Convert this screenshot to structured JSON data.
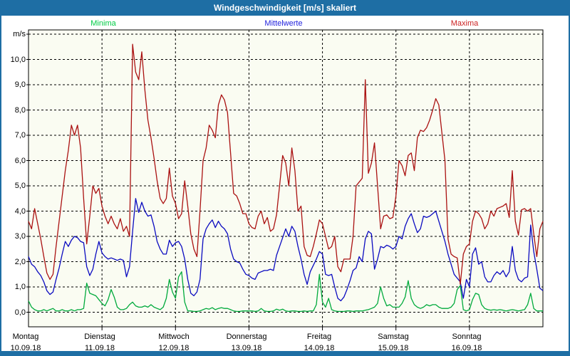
{
  "window": {
    "title_bar": "Windgeschwindigkeit [m/s] skaliert"
  },
  "colors": {
    "frame": "#1e6ea4",
    "plot_bg": "#fafcf2",
    "plot_border": "#000000",
    "grid": "#000000",
    "content_bg": "#ffffff",
    "title_text": "#ffffff",
    "axis_text": "#000000"
  },
  "chart_data": {
    "type": "line",
    "title": "Windgeschwindigkeit [m/s] skaliert",
    "ylabel_unit": "m/s",
    "ylim": [
      0,
      11.2
    ],
    "ytick_step": 1,
    "ytick_labels": [
      "0,0",
      "1,0",
      "2,0",
      "3,0",
      "4,0",
      "5,0",
      "6,0",
      "7,0",
      "8,0",
      "9,0",
      "10,0"
    ],
    "top_gridline_value": 11,
    "grid": "dashed",
    "legend_position": "top",
    "points_per_day": 24,
    "x_days": [
      {
        "weekday": "Montag",
        "date": "10.09.18"
      },
      {
        "weekday": "Dienstag",
        "date": "11.09.18"
      },
      {
        "weekday": "Mittwoch",
        "date": "12.09.18"
      },
      {
        "weekday": "Donnerstag",
        "date": "13.09.18"
      },
      {
        "weekday": "Freitag",
        "date": "14.09.18"
      },
      {
        "weekday": "Samstag",
        "date": "15.09.18"
      },
      {
        "weekday": "Sonntag",
        "date": "16.09.18"
      }
    ],
    "series": [
      {
        "name": "Minima",
        "label_color": "#00cc44",
        "line_color": "#00aa3c",
        "values": [
          0.45,
          0.2,
          0.1,
          0.05,
          0.05,
          0.1,
          0.05,
          0.1,
          0.15,
          0.05,
          0.05,
          0.1,
          0.05,
          0.05,
          0.1,
          0.05,
          0.1,
          0.1,
          0.15,
          1.15,
          0.75,
          0.7,
          0.65,
          0.5,
          0.35,
          0.25,
          0.5,
          0.9,
          0.6,
          0.2,
          0.1,
          0.1,
          0.15,
          0.3,
          0.4,
          0.25,
          0.2,
          0.2,
          0.25,
          0.2,
          0.3,
          0.2,
          0.15,
          0.1,
          0.2,
          0.55,
          1.3,
          0.8,
          0.55,
          1.4,
          1.6,
          0.4,
          0.05,
          0.05,
          0.03,
          0.03,
          0.05,
          0.1,
          0.15,
          0.12,
          0.18,
          0.1,
          0.15,
          0.18,
          0.15,
          0.15,
          0.1,
          0.05,
          0.03,
          0.03,
          0.05,
          0.05,
          0.05,
          0.05,
          0.03,
          0.05,
          0.15,
          0.05,
          0.03,
          0.03,
          0.05,
          0.12,
          0.08,
          0.12,
          0.05,
          0.03,
          0.05,
          0.05,
          0.03,
          0.03,
          0.05,
          0.03,
          0.05,
          0.05,
          0.3,
          1.5,
          0.4,
          0.2,
          0.55,
          0.1,
          0.05,
          0.03,
          0.03,
          0.03,
          0.05,
          0.05,
          0.03,
          0.05,
          0.05,
          0.05,
          0.08,
          0.1,
          0.15,
          0.2,
          0.35,
          1.0,
          0.55,
          0.25,
          0.3,
          0.2,
          0.2,
          0.2,
          0.35,
          0.6,
          1.25,
          0.55,
          0.3,
          0.2,
          0.15,
          0.2,
          0.3,
          0.25,
          0.3,
          0.3,
          0.2,
          0.15,
          0.15,
          0.15,
          0.2,
          0.35,
          0.9,
          1.05,
          0.1,
          0.05,
          0.1,
          0.5,
          0.75,
          0.7,
          0.3,
          0.15,
          0.1,
          0.08,
          0.1,
          0.08,
          0.1,
          0.08,
          0.05,
          0.08,
          0.1,
          0.08,
          0.05,
          0.08,
          0.1,
          0.3,
          0.75,
          0.15,
          0.05,
          0.05,
          0.05
        ]
      },
      {
        "name": "Mittelwerte",
        "label_color": "#2222dd",
        "line_color": "#0a0ac0",
        "values": [
          2.2,
          1.9,
          1.8,
          1.6,
          1.45,
          1.2,
          0.85,
          0.7,
          0.8,
          1.3,
          1.75,
          2.3,
          2.8,
          2.6,
          2.85,
          3.0,
          2.95,
          2.8,
          2.75,
          1.8,
          1.45,
          1.7,
          2.3,
          2.8,
          2.35,
          2.2,
          2.1,
          2.15,
          2.1,
          2.05,
          2.1,
          2.05,
          1.4,
          1.8,
          3.2,
          4.5,
          3.95,
          4.35,
          4.0,
          3.8,
          3.85,
          3.4,
          2.8,
          2.5,
          2.3,
          2.3,
          2.85,
          2.6,
          2.75,
          2.8,
          2.6,
          2.1,
          1.3,
          0.75,
          0.65,
          0.8,
          1.3,
          2.9,
          3.3,
          3.5,
          3.65,
          3.35,
          3.6,
          3.4,
          3.3,
          3.1,
          2.5,
          2.1,
          2.0,
          1.95,
          1.7,
          1.5,
          1.45,
          1.35,
          1.3,
          1.55,
          1.6,
          1.65,
          1.65,
          1.7,
          1.65,
          2.25,
          2.6,
          2.95,
          3.3,
          3.0,
          3.4,
          3.2,
          2.6,
          2.1,
          1.5,
          1.1,
          1.6,
          1.85,
          2.1,
          2.4,
          2.3,
          1.5,
          1.45,
          1.5,
          1.0,
          0.55,
          0.45,
          0.6,
          0.9,
          1.25,
          1.65,
          1.75,
          2.2,
          2.0,
          2.9,
          3.2,
          3.1,
          1.7,
          2.1,
          2.6,
          2.55,
          2.65,
          2.6,
          2.5,
          2.6,
          3.0,
          2.9,
          3.4,
          3.7,
          3.9,
          3.5,
          3.15,
          3.3,
          3.8,
          3.75,
          3.8,
          3.9,
          4.0,
          3.6,
          3.2,
          2.8,
          2.3,
          1.9,
          1.5,
          1.35,
          1.2,
          0.55,
          1.3,
          1.0,
          2.3,
          2.55,
          1.9,
          2.0,
          1.4,
          1.2,
          1.2,
          1.45,
          1.6,
          1.5,
          1.65,
          1.4,
          1.6,
          2.6,
          1.65,
          1.3,
          1.2,
          1.35,
          1.4,
          3.45,
          2.4,
          1.7,
          0.95,
          0.85
        ]
      },
      {
        "name": "Maxima",
        "label_color": "#cc2222",
        "line_color": "#aa1111",
        "values": [
          3.6,
          3.3,
          4.1,
          3.5,
          2.9,
          2.2,
          1.55,
          1.3,
          1.5,
          2.6,
          3.6,
          4.6,
          5.6,
          6.4,
          7.4,
          7.0,
          7.4,
          6.5,
          4.5,
          2.7,
          3.8,
          5.0,
          4.7,
          4.9,
          4.2,
          3.8,
          3.5,
          3.8,
          3.5,
          3.3,
          3.7,
          3.2,
          3.4,
          3.0,
          10.6,
          9.5,
          9.2,
          10.3,
          8.8,
          7.6,
          6.9,
          6.1,
          5.2,
          4.5,
          4.3,
          4.5,
          5.7,
          4.6,
          4.3,
          3.7,
          3.9,
          5.2,
          4.2,
          3.1,
          2.5,
          2.2,
          4.0,
          6.0,
          6.5,
          7.4,
          7.2,
          6.9,
          8.2,
          8.6,
          8.4,
          7.9,
          6.3,
          4.7,
          4.6,
          4.3,
          3.9,
          3.9,
          3.5,
          3.35,
          3.3,
          3.8,
          4.0,
          3.5,
          3.75,
          3.2,
          3.3,
          3.85,
          5.0,
          6.2,
          5.9,
          5.0,
          6.5,
          5.6,
          4.0,
          4.2,
          2.6,
          2.25,
          2.2,
          2.6,
          3.1,
          3.65,
          3.5,
          3.0,
          2.5,
          2.6,
          3.0,
          1.8,
          1.6,
          2.1,
          2.1,
          2.1,
          3.0,
          5.0,
          5.15,
          5.3,
          9.2,
          5.5,
          5.9,
          6.7,
          5.0,
          3.3,
          3.8,
          3.85,
          3.7,
          3.75,
          4.6,
          6.0,
          5.8,
          5.4,
          6.2,
          6.3,
          5.6,
          6.9,
          7.2,
          7.15,
          7.3,
          7.6,
          8.0,
          8.45,
          8.2,
          7.1,
          6.0,
          2.9,
          2.3,
          2.2,
          2.15,
          1.1,
          2.3,
          2.6,
          2.7,
          3.6,
          4.0,
          3.9,
          3.7,
          3.3,
          3.5,
          4.0,
          3.8,
          4.1,
          4.15,
          4.2,
          4.3,
          3.75,
          5.6,
          3.6,
          3.05,
          4.05,
          4.1,
          4.0,
          4.1,
          3.1,
          2.2,
          3.3,
          3.6
        ]
      }
    ]
  }
}
